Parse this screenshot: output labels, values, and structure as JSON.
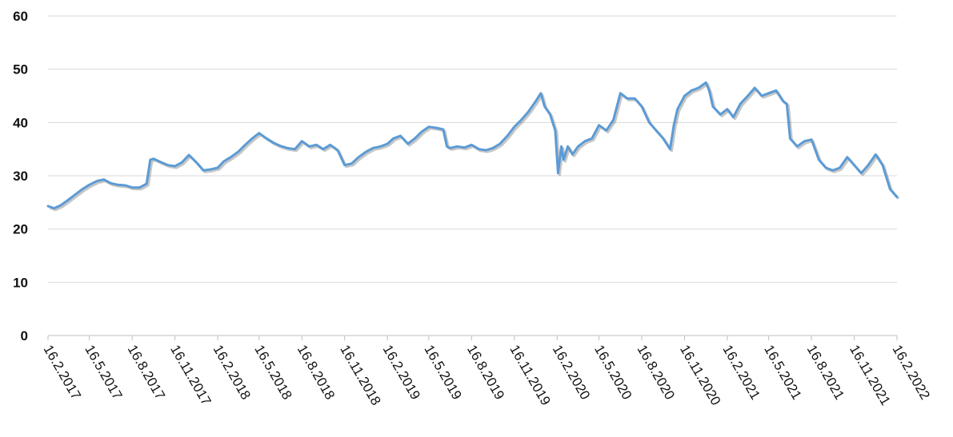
{
  "chart_data": {
    "type": "line",
    "title": "",
    "xlabel": "",
    "ylabel": "",
    "ylim": [
      0,
      60
    ],
    "yticks": [
      "0",
      "10",
      "20",
      "30",
      "40",
      "50",
      "60"
    ],
    "grid": true,
    "legend": "none",
    "colors": {
      "line": "#5b9bd5",
      "grid": "#d9d9d9",
      "axis": "#bfbfbf",
      "text": "#111111"
    },
    "xticks": [
      "16.2.2017",
      "16.5.2017",
      "16.8.2017",
      "16.11.2017",
      "16.2.2018",
      "16.5.2018",
      "16.8.2018",
      "16.11.2018",
      "16.2.2019",
      "16.5.2019",
      "16.8.2019",
      "16.11.2019",
      "16.2.2020",
      "16.5.2020",
      "16.8.2020",
      "16.11.2020",
      "16.2.2021",
      "16.5.2021",
      "16.8.2021",
      "16.11.2021",
      "16.2.2022"
    ],
    "series": [
      {
        "name": "",
        "points": [
          [
            "16.2.2017",
            24.3
          ],
          [
            "1.3.2017",
            23.9
          ],
          [
            "16.3.2017",
            24.5
          ],
          [
            "1.4.2017",
            25.5
          ],
          [
            "16.4.2017",
            26.5
          ],
          [
            "1.5.2017",
            27.5
          ],
          [
            "16.5.2017",
            28.3
          ],
          [
            "1.6.2017",
            29.0
          ],
          [
            "16.6.2017",
            29.3
          ],
          [
            "1.7.2017",
            28.6
          ],
          [
            "16.7.2017",
            28.3
          ],
          [
            "1.8.2017",
            28.2
          ],
          [
            "16.8.2017",
            27.8
          ],
          [
            "1.9.2017",
            27.8
          ],
          [
            "16.9.2017",
            28.5
          ],
          [
            "24.9.2017",
            33.0
          ],
          [
            "1.10.2017",
            33.2
          ],
          [
            "16.10.2017",
            32.6
          ],
          [
            "1.11.2017",
            32.0
          ],
          [
            "16.11.2017",
            31.8
          ],
          [
            "1.12.2017",
            32.5
          ],
          [
            "16.12.2017",
            33.9
          ],
          [
            "1.1.2018",
            32.5
          ],
          [
            "16.1.2018",
            31.0
          ],
          [
            "1.2.2018",
            31.2
          ],
          [
            "16.2.2018",
            31.5
          ],
          [
            "1.3.2018",
            32.7
          ],
          [
            "16.3.2018",
            33.5
          ],
          [
            "1.4.2018",
            34.5
          ],
          [
            "16.4.2018",
            35.8
          ],
          [
            "1.5.2018",
            37.0
          ],
          [
            "16.5.2018",
            38.0
          ],
          [
            "1.6.2018",
            37.0
          ],
          [
            "16.6.2018",
            36.2
          ],
          [
            "1.7.2018",
            35.6
          ],
          [
            "16.7.2018",
            35.2
          ],
          [
            "1.8.2018",
            35.0
          ],
          [
            "16.8.2018",
            36.5
          ],
          [
            "1.9.2018",
            35.5
          ],
          [
            "16.9.2018",
            35.8
          ],
          [
            "1.10.2018",
            35.0
          ],
          [
            "16.10.2018",
            35.8
          ],
          [
            "1.11.2018",
            34.8
          ],
          [
            "16.11.2018",
            32.0
          ],
          [
            "1.12.2018",
            32.3
          ],
          [
            "16.12.2018",
            33.5
          ],
          [
            "1.1.2019",
            34.5
          ],
          [
            "16.1.2019",
            35.2
          ],
          [
            "1.2.2019",
            35.5
          ],
          [
            "16.2.2019",
            36.0
          ],
          [
            "1.3.2019",
            37.0
          ],
          [
            "16.3.2019",
            37.5
          ],
          [
            "1.4.2019",
            36.0
          ],
          [
            "16.4.2019",
            37.0
          ],
          [
            "1.5.2019",
            38.3
          ],
          [
            "16.5.2019",
            39.2
          ],
          [
            "1.6.2019",
            39.0
          ],
          [
            "16.6.2019",
            38.7
          ],
          [
            "24.6.2019",
            35.5
          ],
          [
            "1.7.2019",
            35.2
          ],
          [
            "16.7.2019",
            35.5
          ],
          [
            "1.8.2019",
            35.3
          ],
          [
            "16.8.2019",
            35.8
          ],
          [
            "1.9.2019",
            35.0
          ],
          [
            "16.9.2019",
            34.8
          ],
          [
            "1.10.2019",
            35.2
          ],
          [
            "16.10.2019",
            36.0
          ],
          [
            "1.11.2019",
            37.5
          ],
          [
            "16.11.2019",
            39.2
          ],
          [
            "1.12.2019",
            40.5
          ],
          [
            "16.12.2019",
            42.0
          ],
          [
            "1.1.2020",
            44.0
          ],
          [
            "12.1.2020",
            45.5
          ],
          [
            "20.1.2020",
            43.0
          ],
          [
            "1.2.2020",
            41.5
          ],
          [
            "12.2.2020",
            38.5
          ],
          [
            "18.2.2020",
            30.5
          ],
          [
            "25.2.2020",
            35.5
          ],
          [
            "1.3.2020",
            33.0
          ],
          [
            "10.3.2020",
            35.5
          ],
          [
            "20.3.2020",
            34.0
          ],
          [
            "1.4.2020",
            35.5
          ],
          [
            "16.4.2020",
            36.5
          ],
          [
            "1.5.2020",
            37.0
          ],
          [
            "16.5.2020",
            39.5
          ],
          [
            "1.6.2020",
            38.5
          ],
          [
            "16.6.2020",
            40.5
          ],
          [
            "1.7.2020",
            45.5
          ],
          [
            "16.7.2020",
            44.5
          ],
          [
            "1.8.2020",
            44.5
          ],
          [
            "16.8.2020",
            43.0
          ],
          [
            "1.9.2020",
            40.0
          ],
          [
            "16.9.2020",
            38.5
          ],
          [
            "1.10.2020",
            37.0
          ],
          [
            "16.10.2020",
            35.0
          ],
          [
            "24.10.2020",
            39.5
          ],
          [
            "1.11.2020",
            42.5
          ],
          [
            "16.11.2020",
            45.0
          ],
          [
            "1.12.2020",
            46.0
          ],
          [
            "16.12.2020",
            46.5
          ],
          [
            "1.1.2021",
            47.5
          ],
          [
            "8.1.2021",
            46.0
          ],
          [
            "16.1.2021",
            43.0
          ],
          [
            "1.2.2021",
            41.5
          ],
          [
            "16.2.2021",
            42.5
          ],
          [
            "1.3.2021",
            41.0
          ],
          [
            "16.3.2021",
            43.5
          ],
          [
            "1.4.2021",
            45.0
          ],
          [
            "16.4.2021",
            46.5
          ],
          [
            "1.5.2021",
            45.0
          ],
          [
            "16.5.2021",
            45.5
          ],
          [
            "1.6.2021",
            46.0
          ],
          [
            "16.6.2021",
            44.0
          ],
          [
            "24.6.2021",
            43.5
          ],
          [
            "1.7.2021",
            37.0
          ],
          [
            "16.7.2021",
            35.5
          ],
          [
            "1.8.2021",
            36.5
          ],
          [
            "16.8.2021",
            36.8
          ],
          [
            "1.9.2021",
            33.0
          ],
          [
            "16.9.2021",
            31.5
          ],
          [
            "1.10.2021",
            31.0
          ],
          [
            "16.10.2021",
            31.5
          ],
          [
            "1.11.2021",
            33.5
          ],
          [
            "16.11.2021",
            32.0
          ],
          [
            "1.12.2021",
            30.5
          ],
          [
            "16.12.2021",
            32.0
          ],
          [
            "1.1.2022",
            34.0
          ],
          [
            "16.1.2022",
            32.0
          ],
          [
            "1.2.2022",
            27.5
          ],
          [
            "16.2.2022",
            26.0
          ]
        ]
      }
    ]
  }
}
